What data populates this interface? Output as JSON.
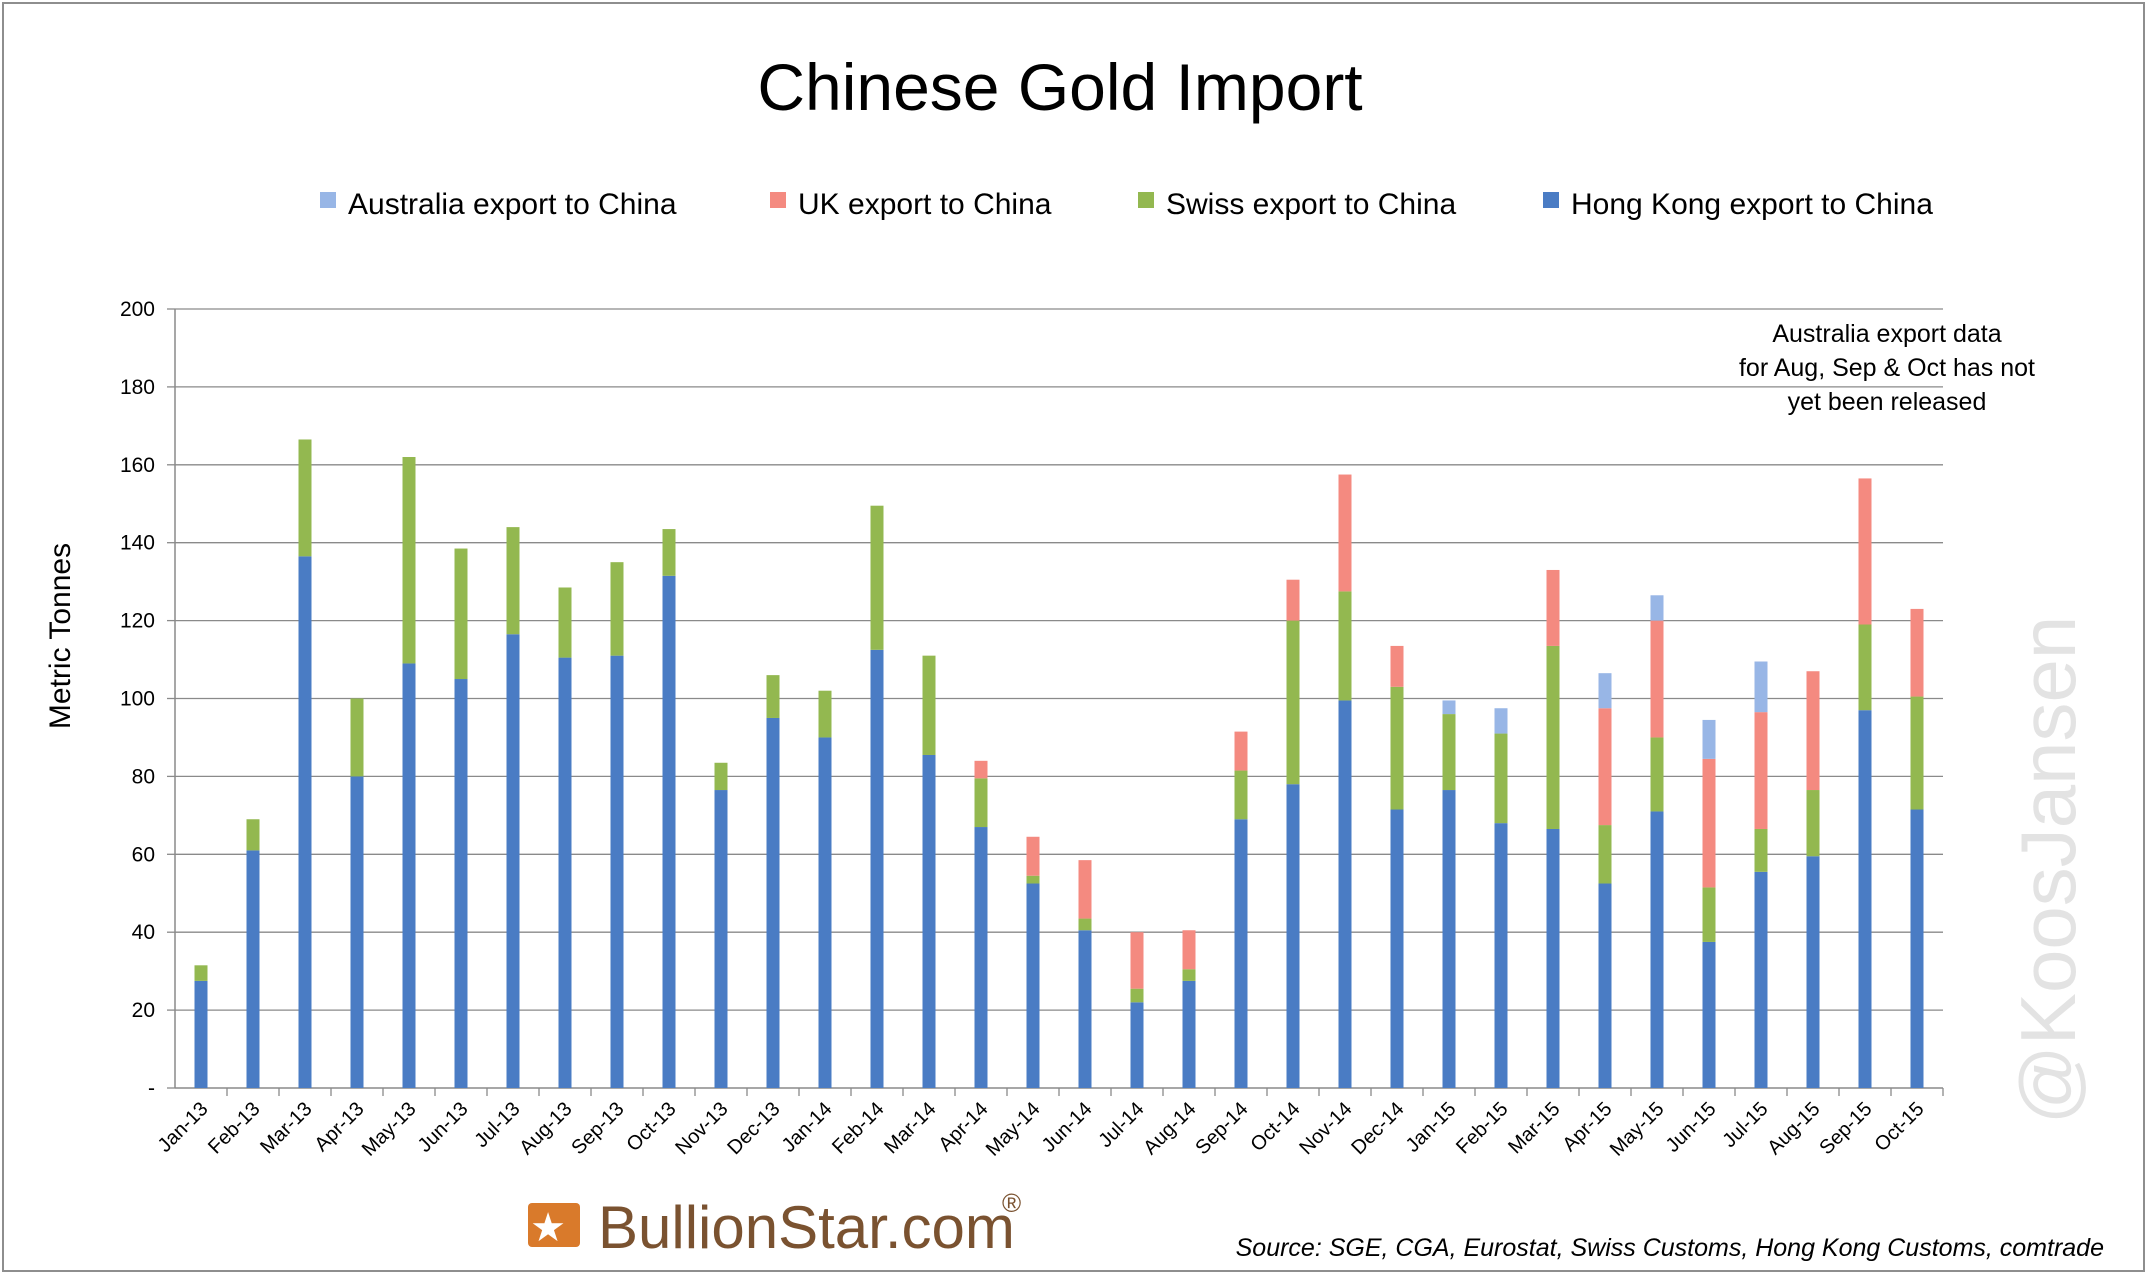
{
  "chart_data": {
    "type": "bar",
    "stacked": true,
    "title": "Chinese Gold Import",
    "ylabel": "Metric Tonnes",
    "xlabel": "",
    "ylim": [
      0,
      200
    ],
    "yticks": [
      0,
      20,
      40,
      60,
      80,
      100,
      120,
      140,
      160,
      180,
      200
    ],
    "ytick_labels": [
      "-",
      "20",
      "40",
      "60",
      "80",
      "100",
      "120",
      "140",
      "160",
      "180",
      "200"
    ],
    "grid": true,
    "legend_position": "top",
    "categories": [
      "Jan-13",
      "Feb-13",
      "Mar-13",
      "Apr-13",
      "May-13",
      "Jun-13",
      "Jul-13",
      "Aug-13",
      "Sep-13",
      "Oct-13",
      "Nov-13",
      "Dec-13",
      "Jan-14",
      "Feb-14",
      "Mar-14",
      "Apr-14",
      "May-14",
      "Jun-14",
      "Jul-14",
      "Aug-14",
      "Sep-14",
      "Oct-14",
      "Nov-14",
      "Dec-14",
      "Jan-15",
      "Feb-15",
      "Mar-15",
      "Apr-15",
      "May-15",
      "Jun-15",
      "Jul-15",
      "Aug-15",
      "Sep-15",
      "Oct-15"
    ],
    "series": [
      {
        "name": "Hong Kong export to China",
        "color": "#4a7cc4",
        "values": [
          27.5,
          61,
          136.5,
          80,
          109,
          105,
          116.5,
          110.5,
          111,
          131.5,
          76.5,
          95,
          90,
          112.5,
          85.5,
          67,
          52.5,
          40.5,
          22,
          27.5,
          69,
          78,
          99.5,
          71.5,
          76.5,
          68,
          66.5,
          52.5,
          71,
          37.5,
          55.5,
          59.5,
          97,
          71.5
        ]
      },
      {
        "name": "Swiss export to China",
        "color": "#93b850",
        "values": [
          4,
          8,
          30,
          20,
          53,
          33.5,
          27.5,
          18,
          24,
          12,
          7,
          11,
          12,
          37,
          25.5,
          12.5,
          2,
          3,
          3.5,
          3,
          12.5,
          42,
          28,
          31.5,
          19.5,
          23,
          47,
          15,
          19,
          14,
          11,
          17,
          22,
          29
        ]
      },
      {
        "name": "UK export to China",
        "color": "#f48a80",
        "values": [
          0,
          0,
          0,
          0,
          0,
          0,
          0,
          0,
          0,
          0,
          0,
          0,
          0,
          0,
          0,
          4.5,
          10,
          15,
          14.5,
          10,
          10,
          10.5,
          30,
          10.5,
          0,
          0,
          19.5,
          30,
          30,
          33,
          30,
          30.5,
          37.5,
          22.5
        ]
      },
      {
        "name": "Australia export to China",
        "color": "#98b6e6",
        "values": [
          0,
          0,
          0,
          0,
          0,
          0,
          0,
          0,
          0,
          0,
          0,
          0,
          0,
          0,
          0,
          0,
          0,
          0,
          0,
          0,
          0,
          0,
          0,
          0,
          3.5,
          6.5,
          0,
          9,
          6.5,
          10,
          13,
          0,
          0,
          0
        ]
      }
    ],
    "legend_order": [
      "Australia export to China",
      "UK export to China",
      "Swiss export to China",
      "Hong Kong export to China"
    ],
    "annotation": [
      "Australia export data",
      "for Aug, Sep & Oct has not",
      "yet been released"
    ],
    "source": "Source: SGE, CGA, Eurostat, Swiss Customs, Hong Kong Customs, comtrade",
    "watermark": "@KoosJansen",
    "logo": {
      "text": "BullionStar.com",
      "mark": "®",
      "color": "#d97a2b"
    }
  }
}
